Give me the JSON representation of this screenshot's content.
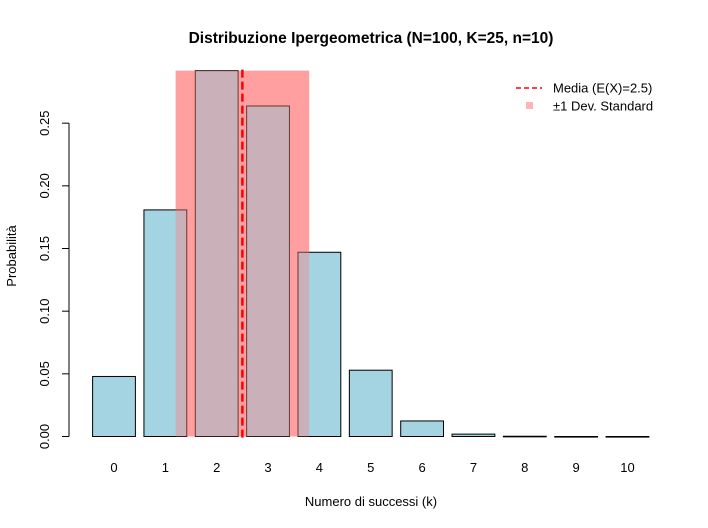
{
  "chart_data": {
    "type": "bar",
    "title": "Distribuzione Ipergeometrica (N=100, K=25, n=10)",
    "xlabel": "Numero di successi (k)",
    "ylabel": "Probabilità",
    "categories": [
      "0",
      "1",
      "2",
      "3",
      "4",
      "5",
      "6",
      "7",
      "8",
      "9",
      "10"
    ],
    "values": [
      0.0479,
      0.1808,
      0.2919,
      0.2637,
      0.147,
      0.0529,
      0.0124,
      0.0019,
      0.0002,
      0.0,
      0.0
    ],
    "ylim": [
      0,
      0.3
    ],
    "yticks": [
      "0.00",
      "0.05",
      "0.10",
      "0.15",
      "0.20",
      "0.25"
    ],
    "bar_color": "#a4d3e2",
    "mean": 2.5,
    "sd": 1.3,
    "mean_line_color": "#ff0000",
    "sd_band_color": "#ffb5b5",
    "legend": {
      "position": "top-right",
      "entries": [
        {
          "label": "Media (E(X)=2.5)",
          "style": "dashed-line",
          "color": "#ff0000"
        },
        {
          "label": "±1 Dev. Standard",
          "style": "square",
          "color": "#ffb5b5"
        }
      ]
    },
    "grid": false
  }
}
